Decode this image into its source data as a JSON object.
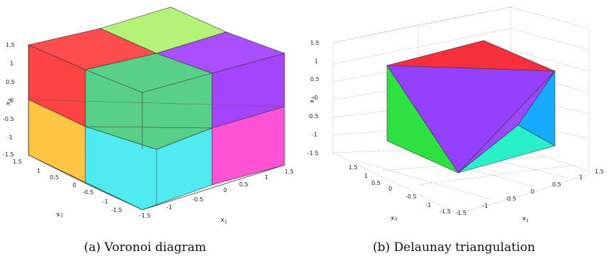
{
  "panels": [
    {
      "caption": "(a) Voronoi diagram",
      "axes": {
        "x1_label": "x",
        "x1_sub": "1",
        "x2_label": "x",
        "x2_sub": "2",
        "x3_label": "x",
        "x3_sub": "3",
        "x1_ticks": [
          "-1.5",
          "-1",
          "-0.5",
          "0",
          "0.5",
          "1",
          "1.5"
        ],
        "x2_ticks": [
          "-1.5",
          "-1",
          "-0.5",
          "0",
          "0.5",
          "1",
          "1.5"
        ],
        "x3_ticks": [
          "1.5",
          "1",
          "0.5",
          "0",
          "-0.5",
          "-1",
          "-1.5"
        ]
      },
      "colors": {
        "red": "#ff2d2d",
        "green_light": "#a8f060",
        "purple": "#9b30ff",
        "green": "#20c060",
        "yellow": "#ffc030",
        "cyan": "#30e8ee",
        "magenta": "#ff40d0"
      }
    },
    {
      "caption": "(b) Delaunay triangulation",
      "axes": {
        "x1_label": "x",
        "x1_sub": "1",
        "x2_label": "x",
        "x2_sub": "2",
        "x3_label": "x",
        "x3_sub": "3",
        "x1_ticks": [
          "-1.5",
          "-1",
          "-0.5",
          "0",
          "0.5",
          "1",
          "1.5"
        ],
        "x2_ticks": [
          "-1.5",
          "-1",
          "-0.5",
          "0",
          "0.5",
          "1",
          "1.5"
        ],
        "x3_ticks": [
          "1.5",
          "1",
          "0.5",
          "0",
          "-0.5",
          "-1",
          "-1.5"
        ]
      },
      "colors": {
        "red": "#f5303c",
        "purple": "#9640ff",
        "green": "#2ee040",
        "blue": "#18aaff",
        "teal": "#28f0c8"
      }
    }
  ]
}
